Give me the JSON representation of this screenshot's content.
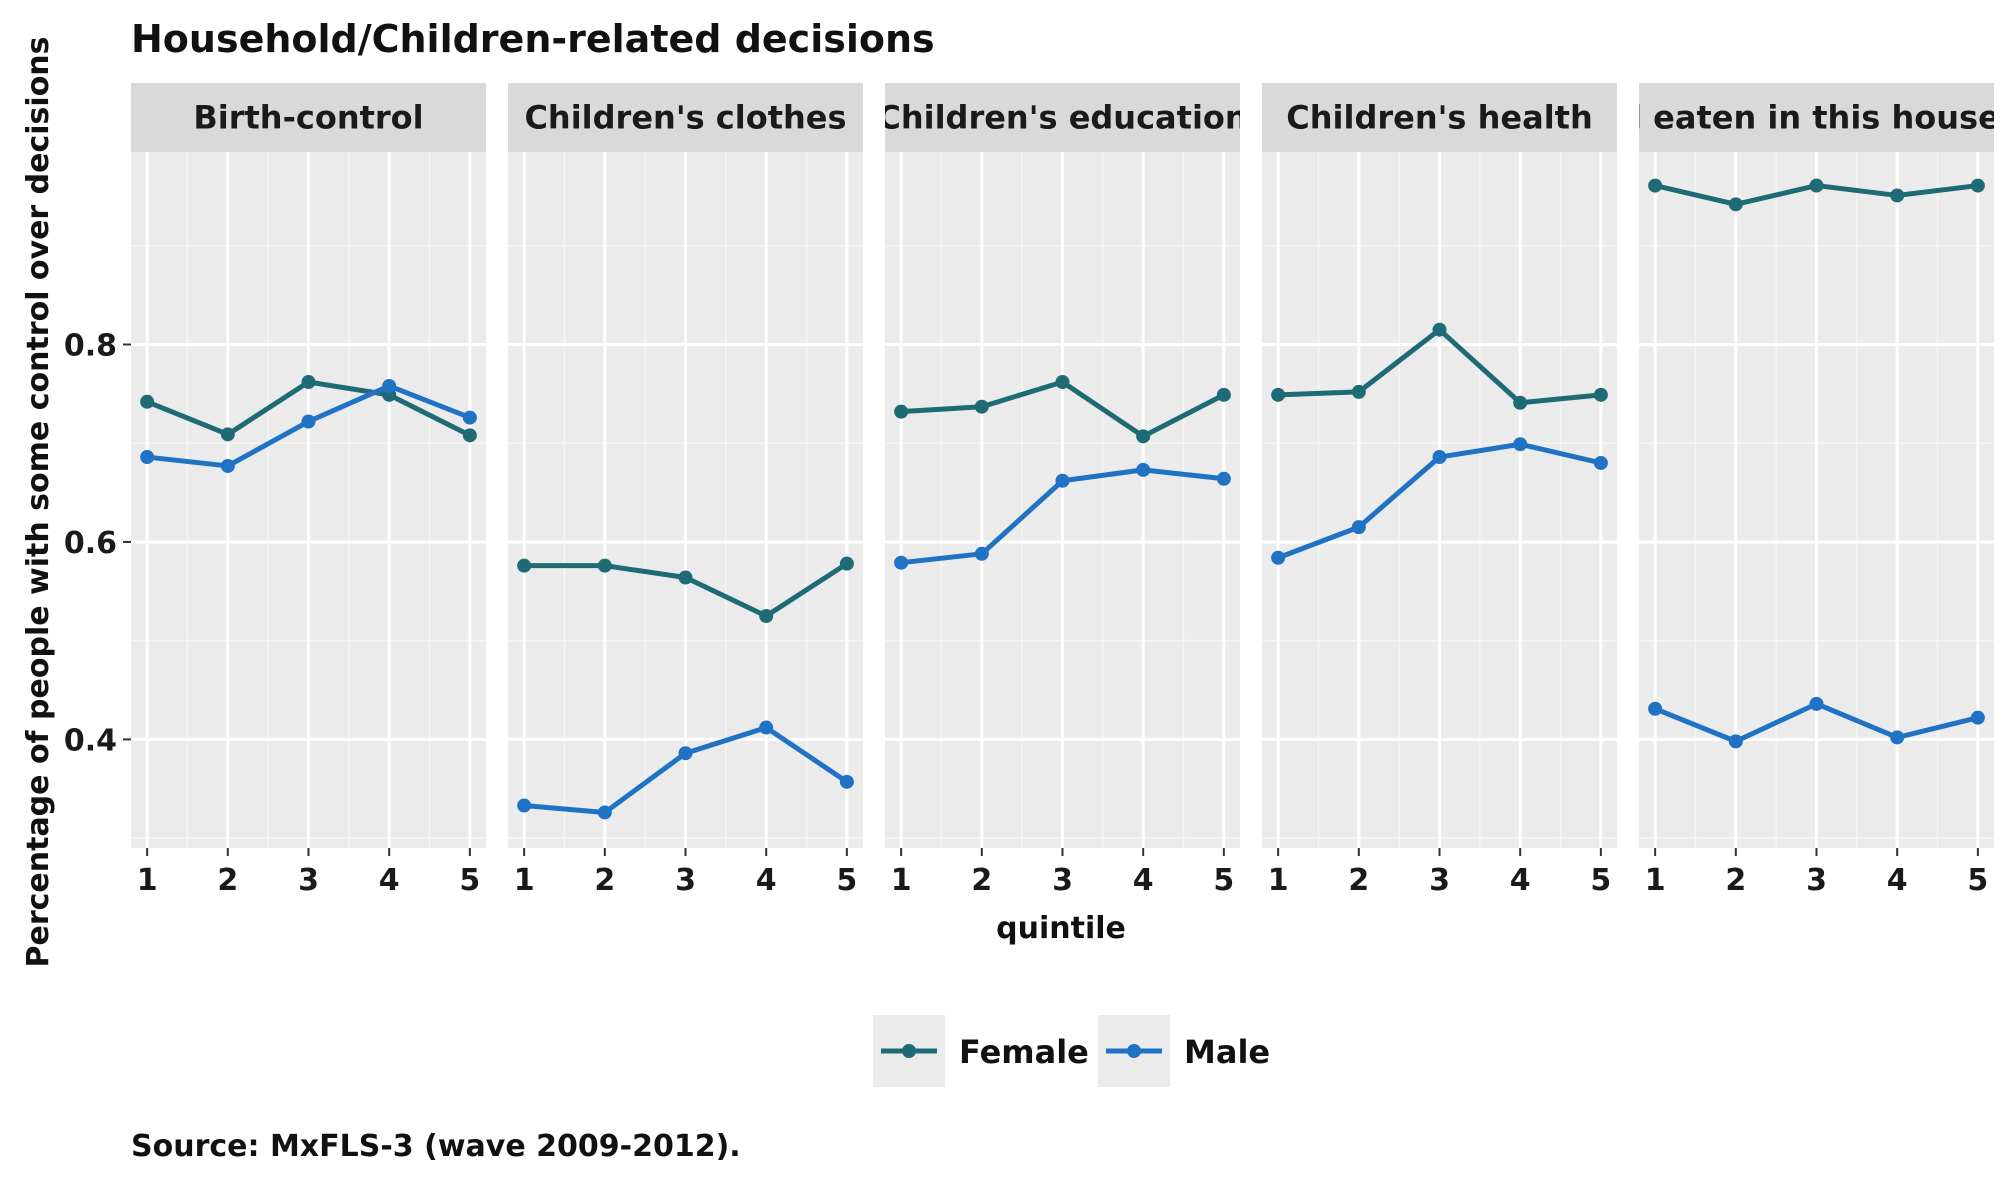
{
  "chart_data": {
    "type": "line",
    "title": "Household/Children-related decisions",
    "xlabel": "quintile",
    "ylabel": "Percentage of people with some control over decisions",
    "caption": "Source: MxFLS-3 (wave 2009-2012).",
    "x": [
      1,
      2,
      3,
      4,
      5
    ],
    "x_tick_labels": [
      "1",
      "2",
      "3",
      "4",
      "5"
    ],
    "ylim": [
      0.29,
      0.995
    ],
    "y_ticks": [
      0.4,
      0.6,
      0.8
    ],
    "y_tick_labels": [
      "0.4",
      "0.6",
      "0.8"
    ],
    "grid": true,
    "legend_position": "bottom",
    "series_styles": [
      {
        "name": "Female",
        "color": "#1f6b75"
      },
      {
        "name": "Male",
        "color": "#1f72c4"
      }
    ],
    "panels": [
      {
        "label": "Birth-control",
        "series": [
          {
            "name": "Female",
            "values": [
              0.742,
              0.709,
              0.762,
              0.749,
              0.708
            ]
          },
          {
            "name": "Male",
            "values": [
              0.686,
              0.677,
              0.722,
              0.758,
              0.726
            ]
          }
        ]
      },
      {
        "label": "Children's clothes",
        "series": [
          {
            "name": "Female",
            "values": [
              0.576,
              0.576,
              0.564,
              0.525,
              0.578
            ]
          },
          {
            "name": "Male",
            "values": [
              0.333,
              0.326,
              0.386,
              0.412,
              0.357
            ]
          }
        ]
      },
      {
        "label": "Children's education",
        "series": [
          {
            "name": "Female",
            "values": [
              0.732,
              0.737,
              0.762,
              0.707,
              0.749
            ]
          },
          {
            "name": "Male",
            "values": [
              0.579,
              0.588,
              0.662,
              0.673,
              0.664
            ]
          }
        ]
      },
      {
        "label": "Children's health",
        "series": [
          {
            "name": "Female",
            "values": [
              0.749,
              0.752,
              0.815,
              0.741,
              0.749
            ]
          },
          {
            "name": "Male",
            "values": [
              0.584,
              0.615,
              0.686,
              0.699,
              0.68
            ]
          }
        ]
      },
      {
        "label": "Food eaten in this household",
        "series": [
          {
            "name": "Female",
            "values": [
              0.961,
              0.942,
              0.961,
              0.951,
              0.961
            ]
          },
          {
            "name": "Male",
            "values": [
              0.431,
              0.398,
              0.436,
              0.402,
              0.422
            ]
          }
        ]
      }
    ]
  }
}
